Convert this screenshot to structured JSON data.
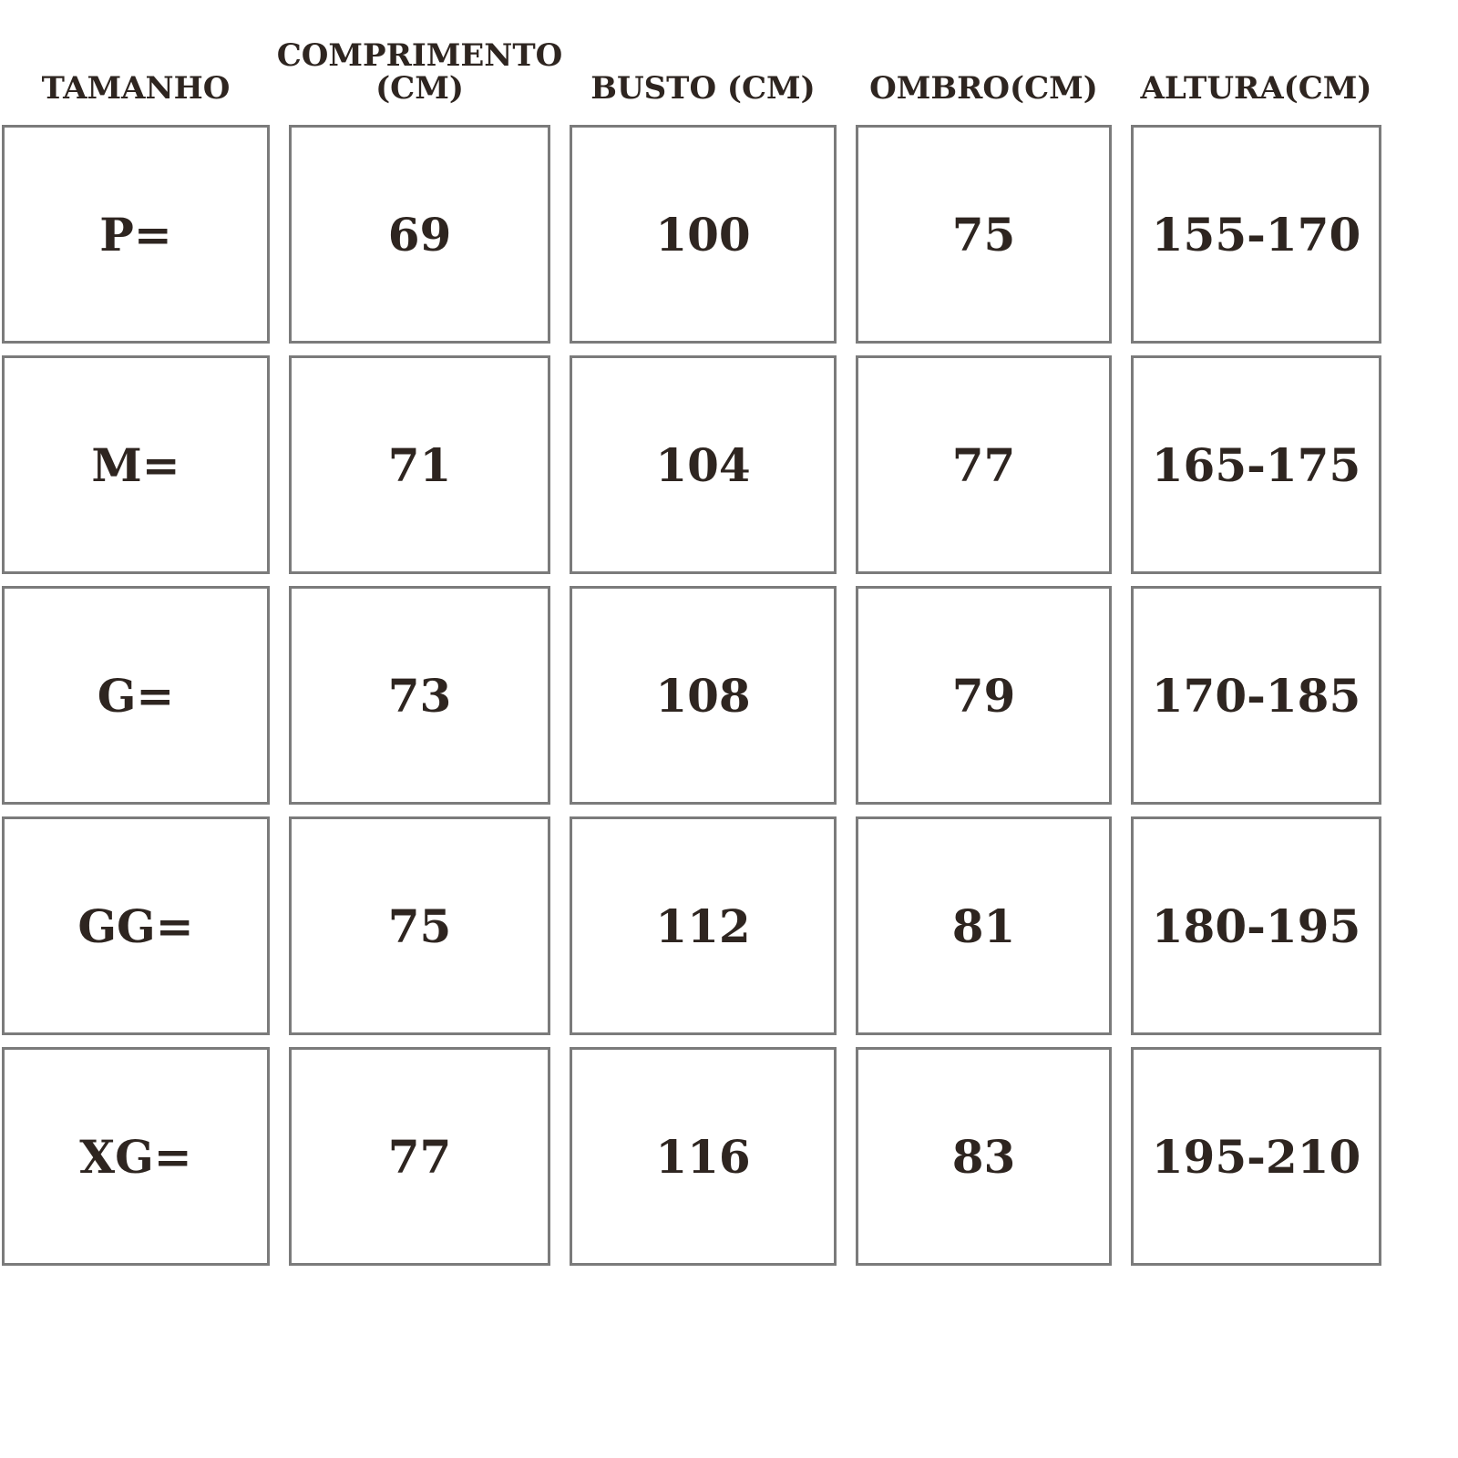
{
  "colors": {
    "background": "#ffffff",
    "text": "#2e2520",
    "cell_border": "#7b7b7b"
  },
  "chart_data": {
    "type": "table",
    "columns": [
      {
        "key": "tamanho",
        "label": "TAMANHO"
      },
      {
        "key": "comprimento",
        "label": "COMPRIMENTO (CM)"
      },
      {
        "key": "busto",
        "label": "BUSTO (CM)"
      },
      {
        "key": "ombro",
        "label": "OMBRO(CM)"
      },
      {
        "key": "altura",
        "label": "ALTURA(CM)"
      }
    ],
    "rows": [
      {
        "tamanho": "P=",
        "comprimento": "69",
        "busto": "100",
        "ombro": "75",
        "altura": "155-170"
      },
      {
        "tamanho": "M=",
        "comprimento": "71",
        "busto": "104",
        "ombro": "77",
        "altura": "165-175"
      },
      {
        "tamanho": "G=",
        "comprimento": "73",
        "busto": "108",
        "ombro": "79",
        "altura": "170-185"
      },
      {
        "tamanho": "GG=",
        "comprimento": "75",
        "busto": "112",
        "ombro": "81",
        "altura": "180-195"
      },
      {
        "tamanho": "XG=",
        "comprimento": "77",
        "busto": "116",
        "ombro": "83",
        "altura": "195-210"
      }
    ]
  }
}
